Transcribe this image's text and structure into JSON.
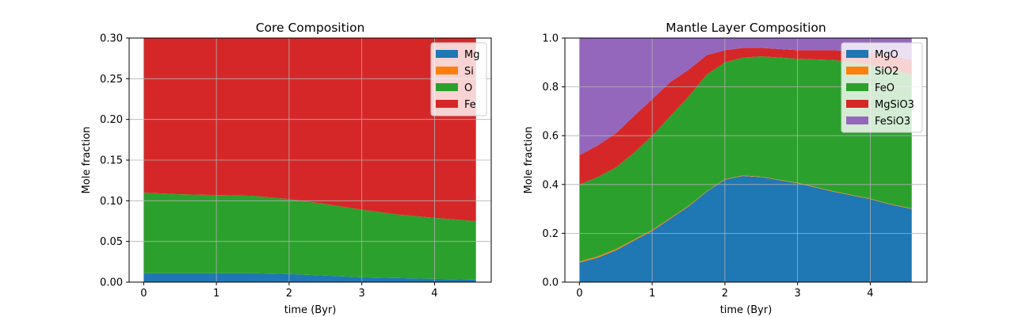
{
  "chart_data": [
    {
      "type": "area",
      "stacked": true,
      "title": "Core Composition",
      "xlabel": "time (Byr)",
      "ylabel": "Mole fraction",
      "xlim": [
        -0.2,
        4.78
      ],
      "ylim": [
        0,
        0.3
      ],
      "x_ticks": [
        "0",
        "1",
        "2",
        "3",
        "4"
      ],
      "y_ticks": [
        "0.00",
        "0.05",
        "0.10",
        "0.15",
        "0.20",
        "0.25",
        "0.30"
      ],
      "grid": true,
      "legend_position": "top-right",
      "x": [
        0,
        0.5,
        1,
        1.5,
        2,
        2.5,
        3,
        3.5,
        4,
        4.57
      ],
      "series": [
        {
          "name": "Mg",
          "color": "#1f77b4",
          "values": [
            0.011,
            0.011,
            0.011,
            0.011,
            0.01,
            0.008,
            0.006,
            0.005,
            0.004,
            0.003
          ]
        },
        {
          "name": "Si",
          "color": "#ff7f0e",
          "values": [
            0,
            0,
            0,
            0,
            0,
            0,
            0,
            0,
            0,
            0
          ]
        },
        {
          "name": "O",
          "color": "#2ca02c",
          "values": [
            0.099,
            0.097,
            0.096,
            0.095,
            0.092,
            0.088,
            0.083,
            0.078,
            0.075,
            0.072
          ]
        },
        {
          "name": "Fe",
          "color": "#d62728",
          "values": [
            0.19,
            0.192,
            0.193,
            0.194,
            0.198,
            0.204,
            0.211,
            0.217,
            0.221,
            0.225
          ]
        }
      ]
    },
    {
      "type": "area",
      "stacked": true,
      "title": "Mantle Layer Composition",
      "xlabel": "time (Byr)",
      "ylabel": "Mole fraction",
      "xlim": [
        -0.2,
        4.78
      ],
      "ylim": [
        0,
        1.0
      ],
      "x_ticks": [
        "0",
        "1",
        "2",
        "3",
        "4"
      ],
      "y_ticks": [
        "0.0",
        "0.2",
        "0.4",
        "0.6",
        "0.8",
        "1.0"
      ],
      "grid": true,
      "legend_position": "top-right",
      "x": [
        0,
        0.25,
        0.5,
        0.75,
        1,
        1.25,
        1.5,
        1.75,
        2,
        2.25,
        2.5,
        3,
        3.5,
        4,
        4.25,
        4.57
      ],
      "series": [
        {
          "name": "MgO",
          "color": "#1f77b4",
          "values": [
            0.08,
            0.1,
            0.13,
            0.17,
            0.21,
            0.26,
            0.31,
            0.37,
            0.42,
            0.435,
            0.43,
            0.405,
            0.37,
            0.34,
            0.32,
            0.3
          ]
        },
        {
          "name": "SiO2",
          "color": "#ff7f0e",
          "values": [
            0.005,
            0.005,
            0.005,
            0.004,
            0.004,
            0.003,
            0.003,
            0.002,
            0.002,
            0.002,
            0.002,
            0.002,
            0.002,
            0.002,
            0.002,
            0.002
          ]
        },
        {
          "name": "FeO",
          "color": "#2ca02c",
          "values": [
            0.315,
            0.325,
            0.335,
            0.356,
            0.386,
            0.417,
            0.447,
            0.478,
            0.478,
            0.483,
            0.493,
            0.508,
            0.538,
            0.548,
            0.548,
            0.548
          ]
        },
        {
          "name": "MgSiO3",
          "color": "#d62728",
          "values": [
            0.12,
            0.13,
            0.14,
            0.15,
            0.15,
            0.14,
            0.11,
            0.08,
            0.05,
            0.04,
            0.035,
            0.035,
            0.04,
            0.05,
            0.06,
            0.06
          ]
        },
        {
          "name": "FeSiO3",
          "color": "#9467bd",
          "values": [
            0.48,
            0.44,
            0.39,
            0.32,
            0.25,
            0.18,
            0.13,
            0.07,
            0.05,
            0.04,
            0.04,
            0.05,
            0.05,
            0.06,
            0.07,
            0.09
          ]
        }
      ]
    }
  ]
}
